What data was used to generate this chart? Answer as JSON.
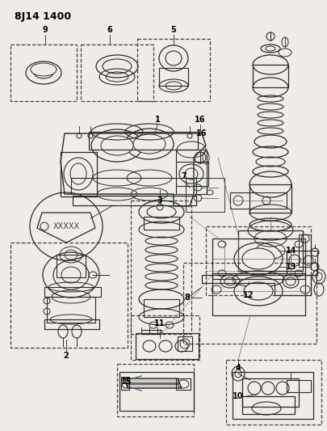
{
  "title": "8J14 1400",
  "bg_color": "#f0ede8",
  "fig_width": 4.05,
  "fig_height": 5.33,
  "dpi": 100,
  "lc": "#2a2a2a",
  "lc2": "#444444",
  "lc3": "#666666"
}
